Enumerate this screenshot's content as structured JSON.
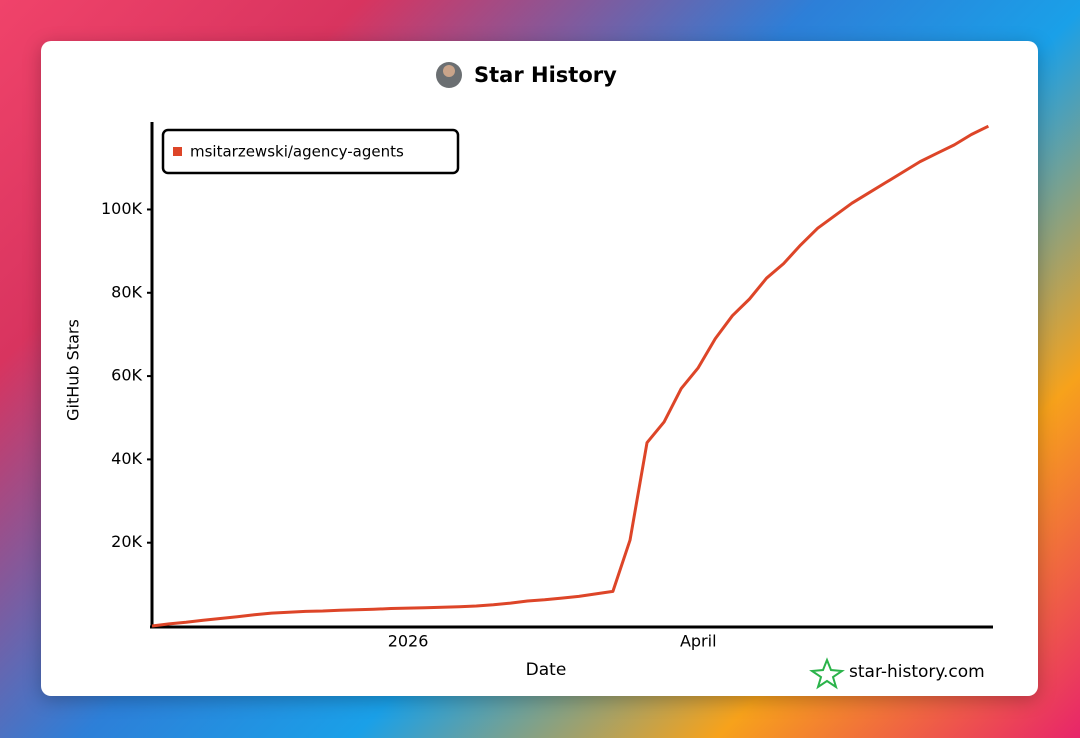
{
  "chart_data": {
    "type": "line",
    "title": "Star History",
    "x_label": "Date",
    "y_label": "GitHub Stars",
    "watermark": "star-history.com",
    "categories": [
      null,
      null,
      null,
      null,
      null,
      null,
      null,
      null,
      null,
      null,
      null,
      null,
      null,
      null,
      null,
      "2026",
      null,
      null,
      null,
      null,
      null,
      null,
      null,
      null,
      null,
      null,
      null,
      null,
      null,
      null,
      null,
      null,
      "April",
      null,
      null,
      null,
      null,
      null,
      null,
      null,
      null,
      null,
      null,
      null,
      null,
      null,
      null,
      null,
      null,
      null
    ],
    "series": [
      {
        "name": "msitarzewski/agency-agents",
        "color": "#dd4528",
        "values": [
          0,
          500,
          900,
          1400,
          1800,
          2200,
          2700,
          3100,
          3300,
          3500,
          3600,
          3800,
          3900,
          4000,
          4200,
          4300,
          4400,
          4500,
          4600,
          4800,
          5100,
          5500,
          6000,
          6300,
          6700,
          7100,
          7700,
          8300,
          20600,
          44000,
          49000,
          57000,
          62000,
          69000,
          74500,
          78500,
          83500,
          87000,
          91500,
          95500,
          98500,
          101500,
          104000,
          106500,
          109000,
          111500,
          113500,
          115500,
          118000,
          120000
        ]
      }
    ],
    "ylim": [
      0,
      121000
    ],
    "yticks": [
      {
        "value": 20000,
        "label": "20K"
      },
      {
        "value": 40000,
        "label": "40K"
      },
      {
        "value": 60000,
        "label": "60K"
      },
      {
        "value": 80000,
        "label": "80K"
      },
      {
        "value": 100000,
        "label": "100K"
      }
    ],
    "legend": "top-left"
  }
}
